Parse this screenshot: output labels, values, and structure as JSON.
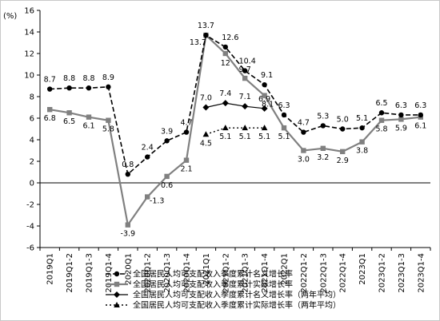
{
  "chart_data": {
    "type": "line",
    "unit_label": "(%)",
    "categories": [
      "2019Q1",
      "2019Q1-2",
      "2019Q1-3",
      "2019Q1-4",
      "2020Q1",
      "2020Q1-2",
      "2020Q1-3",
      "2020Q1-4",
      "2021Q1",
      "2021Q1-2",
      "2021Q1-3",
      "2021Q1-4",
      "2022Q1",
      "2022Q1-2",
      "2022Q1-3",
      "2022Q1-4",
      "2023Q1",
      "2023Q1-2",
      "2023Q1-3",
      "2023Q1-4"
    ],
    "ylim": [
      -6,
      16
    ],
    "yticks": [
      -6,
      -4,
      -2,
      0,
      2,
      4,
      6,
      8,
      10,
      12,
      14,
      16
    ],
    "grid": false,
    "legend_position": "bottom-center",
    "series": [
      {
        "name": "全国居民人均可支配收入季度累计名义增长率",
        "color": "#000000",
        "dash": "dashed",
        "marker": "circle",
        "values": [
          8.7,
          8.8,
          8.8,
          8.9,
          0.8,
          2.4,
          3.9,
          4.7,
          13.7,
          12.6,
          10.4,
          9.1,
          6.3,
          4.7,
          5.3,
          5.0,
          5.1,
          6.5,
          6.3,
          6.3
        ],
        "labels": [
          "8.7",
          "8.8",
          "8.8",
          "8.9",
          "0.8",
          "2.4",
          "3.9",
          "4.7",
          "13.7",
          "12.6",
          "10.4",
          "9.1",
          "6.3",
          "4.7",
          "5.3",
          "5.0",
          "5.1",
          "6.5",
          "6.3",
          "6.3"
        ]
      },
      {
        "name": "全国居民人均可支配收入季度累计实际增长率",
        "color": "#808080",
        "dash": "solid",
        "marker": "square",
        "values": [
          6.8,
          6.5,
          6.1,
          5.8,
          -3.9,
          -1.3,
          0.6,
          2.1,
          13.7,
          12.0,
          9.7,
          8.1,
          5.1,
          3.0,
          3.2,
          2.9,
          3.8,
          5.8,
          5.9,
          6.1
        ],
        "labels": [
          "6.8",
          "6.5",
          "6.1",
          "5.8",
          "-3.9",
          "-1.3",
          "0.6",
          "2.1",
          "13.7",
          "12",
          "9.7",
          "8.1",
          "5.1",
          "3.0",
          "3.2",
          "2.9",
          "3.8",
          "5.8",
          "5.9",
          "6.1"
        ]
      },
      {
        "name": "全国居民人均可支配收入季度累计名义增长率（两年平均）",
        "color": "#000000",
        "dash": "solid",
        "marker": "diamond",
        "values": [
          null,
          null,
          null,
          null,
          null,
          null,
          null,
          null,
          7.0,
          7.4,
          7.1,
          6.9,
          null,
          null,
          null,
          null,
          null,
          null,
          null,
          null
        ],
        "labels": [
          null,
          null,
          null,
          null,
          null,
          null,
          null,
          null,
          "7.0",
          "7.4",
          "7.1",
          "6.9",
          null,
          null,
          null,
          null,
          null,
          null,
          null,
          null
        ]
      },
      {
        "name": "全国居民人均可支配收入季度累计实际增长率（两年平均）",
        "color": "#000000",
        "dash": "dotted",
        "marker": "triangle",
        "values": [
          null,
          null,
          null,
          null,
          null,
          null,
          null,
          null,
          4.5,
          5.1,
          5.1,
          5.1,
          null,
          null,
          null,
          null,
          null,
          null,
          null,
          null
        ],
        "labels": [
          null,
          null,
          null,
          null,
          null,
          null,
          null,
          null,
          "4.5",
          "5.1",
          "5.1",
          "5.1",
          null,
          null,
          null,
          null,
          null,
          null,
          null,
          null
        ]
      }
    ]
  }
}
